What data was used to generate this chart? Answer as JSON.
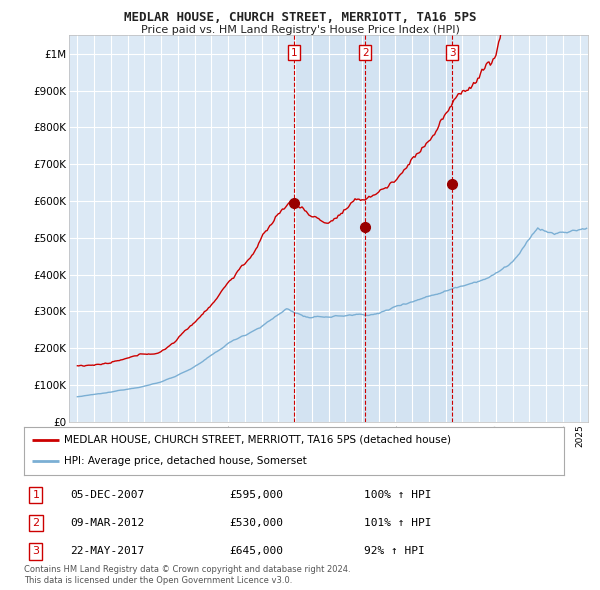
{
  "title": "MEDLAR HOUSE, CHURCH STREET, MERRIOTT, TA16 5PS",
  "subtitle": "Price paid vs. HM Land Registry's House Price Index (HPI)",
  "background_color": "#ffffff",
  "plot_bg_color": "#dce9f5",
  "grid_color": "#ffffff",
  "red_line_color": "#cc0000",
  "blue_line_color": "#7bafd4",
  "sale_marker_color": "#990000",
  "vline_color": "#cc0000",
  "ylim": [
    0,
    1050000
  ],
  "yticks": [
    0,
    100000,
    200000,
    300000,
    400000,
    500000,
    600000,
    700000,
    800000,
    900000,
    1000000
  ],
  "ytick_labels": [
    "£0",
    "£100K",
    "£200K",
    "£300K",
    "£400K",
    "£500K",
    "£600K",
    "£700K",
    "£800K",
    "£900K",
    "£1M"
  ],
  "sales": [
    {
      "label": "1",
      "date": "05-DEC-2007",
      "price": 595000,
      "x_year": 2007.92,
      "pct": "100%",
      "dir": "↑"
    },
    {
      "label": "2",
      "date": "09-MAR-2012",
      "price": 530000,
      "x_year": 2012.19,
      "pct": "101%",
      "dir": "↑"
    },
    {
      "label": "3",
      "date": "22-MAY-2017",
      "price": 645000,
      "x_year": 2017.39,
      "pct": "92%",
      "dir": "↑"
    }
  ],
  "legend_entries": [
    {
      "label": "MEDLAR HOUSE, CHURCH STREET, MERRIOTT, TA16 5PS (detached house)",
      "color": "#cc0000"
    },
    {
      "label": "HPI: Average price, detached house, Somerset",
      "color": "#7bafd4"
    }
  ],
  "footnote": "Contains HM Land Registry data © Crown copyright and database right 2024.\nThis data is licensed under the Open Government Licence v3.0.",
  "xlim_start": 1994.5,
  "xlim_end": 2025.5
}
